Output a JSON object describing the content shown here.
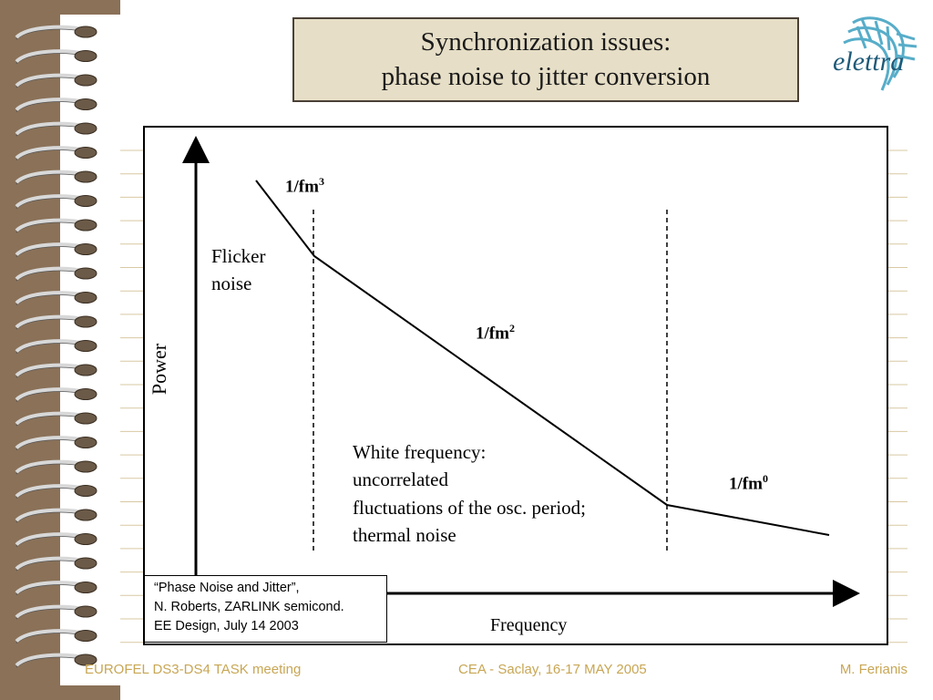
{
  "slide": {
    "title_line1": "Synchronization issues:",
    "title_line2": "phase noise to jitter conversion",
    "logo_text": "elettra"
  },
  "diagram": {
    "labels": {
      "slope3_base": "1/fm",
      "slope3_exp": "3",
      "slope2_base": "1/fm",
      "slope2_exp": "2",
      "slope0_base": "1/fm",
      "slope0_exp": "0",
      "flicker_line1": "Flicker",
      "flicker_line2": "noise",
      "white_line1": "White frequency:",
      "white_line2": "uncorrelated",
      "white_line3": "fluctuations of the osc. period;",
      "white_line4": "thermal noise"
    },
    "axis_y_label": "Power",
    "axis_x_label": "Frequency",
    "reference": {
      "line1": "“Phase Noise and Jitter”,",
      "line2": "N. Roberts,  ZARLINK semicond.",
      "line3": "EE Design, July 14 2003"
    }
  },
  "footer": {
    "left": "EUROFEL DS3-DS4 TASK meeting",
    "center": "CEA - Saclay, 16-17 MAY 2005",
    "right": "M. Ferianis"
  },
  "colors": {
    "binding": "#8a7158",
    "title_bg": "#e6dec6",
    "ruled_line": "#d9c9a3",
    "footer_text": "#c8a654"
  }
}
